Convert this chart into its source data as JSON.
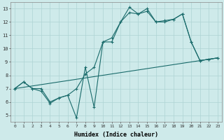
{
  "xlabel": "Humidex (Indice chaleur)",
  "bg_color": "#ceeaea",
  "line_color": "#1a6b6b",
  "grid_color": "#aed4d4",
  "xlim": [
    -0.5,
    23.5
  ],
  "ylim": [
    4.5,
    13.5
  ],
  "xticks": [
    0,
    1,
    2,
    3,
    4,
    5,
    6,
    7,
    8,
    9,
    10,
    11,
    12,
    13,
    14,
    15,
    16,
    17,
    18,
    19,
    20,
    21,
    22,
    23
  ],
  "yticks": [
    5,
    6,
    7,
    8,
    9,
    10,
    11,
    12,
    13
  ],
  "line1_x": [
    0,
    1,
    2,
    3,
    4,
    5,
    6,
    7,
    8,
    9,
    10,
    11,
    12,
    13,
    14,
    15,
    16,
    17,
    18,
    19,
    20,
    21,
    22,
    23
  ],
  "line1_y": [
    7.0,
    7.5,
    7.0,
    6.8,
    5.9,
    6.3,
    6.5,
    4.8,
    8.6,
    5.6,
    10.5,
    10.5,
    12.0,
    13.1,
    12.6,
    13.0,
    12.0,
    12.0,
    12.2,
    12.6,
    10.5,
    9.1,
    9.2,
    9.3
  ],
  "line2_x": [
    0,
    1,
    2,
    3,
    4,
    5,
    6,
    7,
    8,
    9,
    10,
    11,
    12,
    13,
    14,
    15,
    16,
    17,
    18,
    19,
    20,
    21,
    22,
    23
  ],
  "line2_y": [
    7.0,
    7.5,
    7.0,
    7.0,
    6.0,
    6.3,
    6.5,
    7.0,
    8.1,
    8.6,
    10.5,
    10.8,
    12.0,
    12.7,
    12.6,
    12.8,
    12.0,
    12.1,
    12.2,
    12.6,
    10.5,
    9.1,
    9.2,
    9.3
  ],
  "line3_x": [
    0,
    23
  ],
  "line3_y": [
    7.0,
    9.3
  ]
}
